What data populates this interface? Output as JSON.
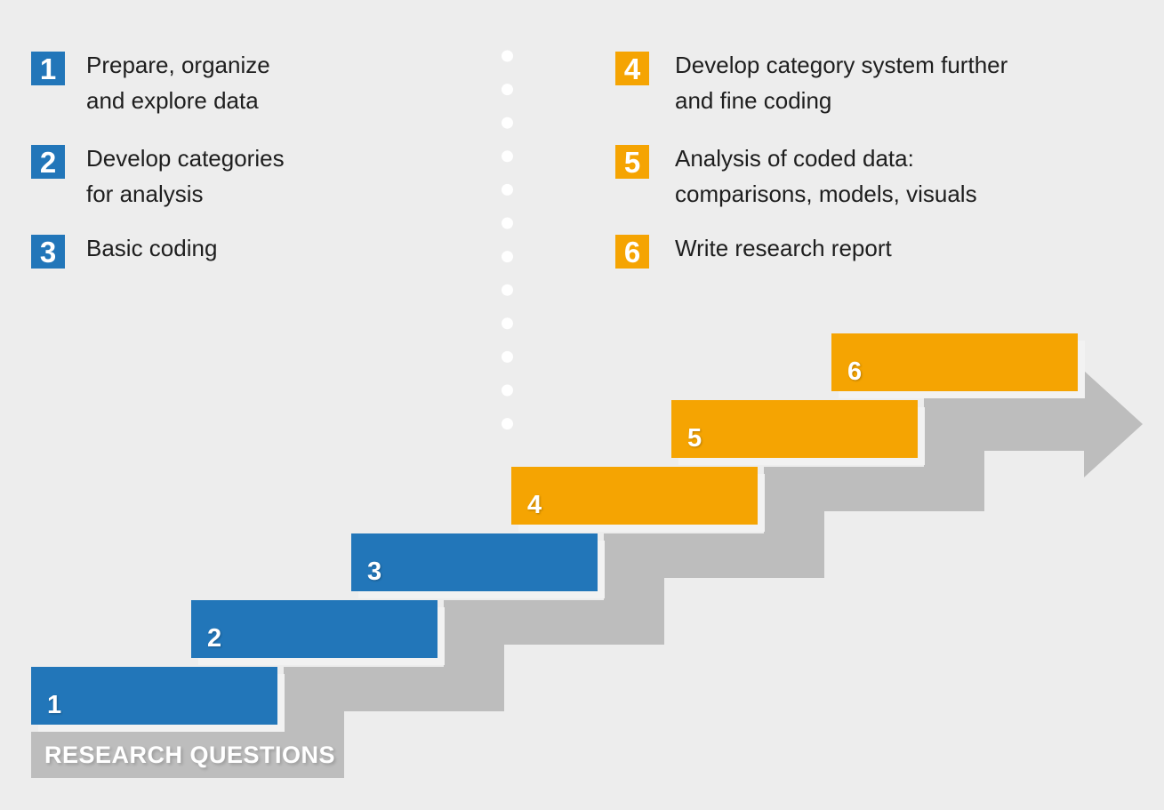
{
  "colors": {
    "background": "#EDEDED",
    "blue": "#2276B9",
    "orange": "#F5A402",
    "gray_arrow": "#BDBDBD",
    "dot_white": "#FFFFFF",
    "text_dark": "#1E1E1E",
    "text_white": "#FFFFFF"
  },
  "legend": {
    "left": [
      {
        "number": "1",
        "label": "Prepare, organize\nand explore data",
        "color": "blue"
      },
      {
        "number": "2",
        "label": "Develop categories\nfor analysis",
        "color": "blue"
      },
      {
        "number": "3",
        "label": "Basic coding",
        "color": "blue"
      }
    ],
    "right": [
      {
        "number": "4",
        "label": "Develop category system further\nand fine coding",
        "color": "orange"
      },
      {
        "number": "5",
        "label": "Analysis of coded data:\ncomparisons, models, visuals",
        "color": "orange"
      },
      {
        "number": "6",
        "label": "Write research report",
        "color": "orange"
      }
    ]
  },
  "separator": {
    "dot_count": 12
  },
  "staircase": {
    "steps": [
      {
        "number": "1",
        "color": "blue"
      },
      {
        "number": "2",
        "color": "blue"
      },
      {
        "number": "3",
        "color": "blue"
      },
      {
        "number": "4",
        "color": "orange"
      },
      {
        "number": "5",
        "color": "orange"
      },
      {
        "number": "6",
        "color": "orange"
      }
    ],
    "baseline_label": "RESEARCH QUESTIONS"
  }
}
